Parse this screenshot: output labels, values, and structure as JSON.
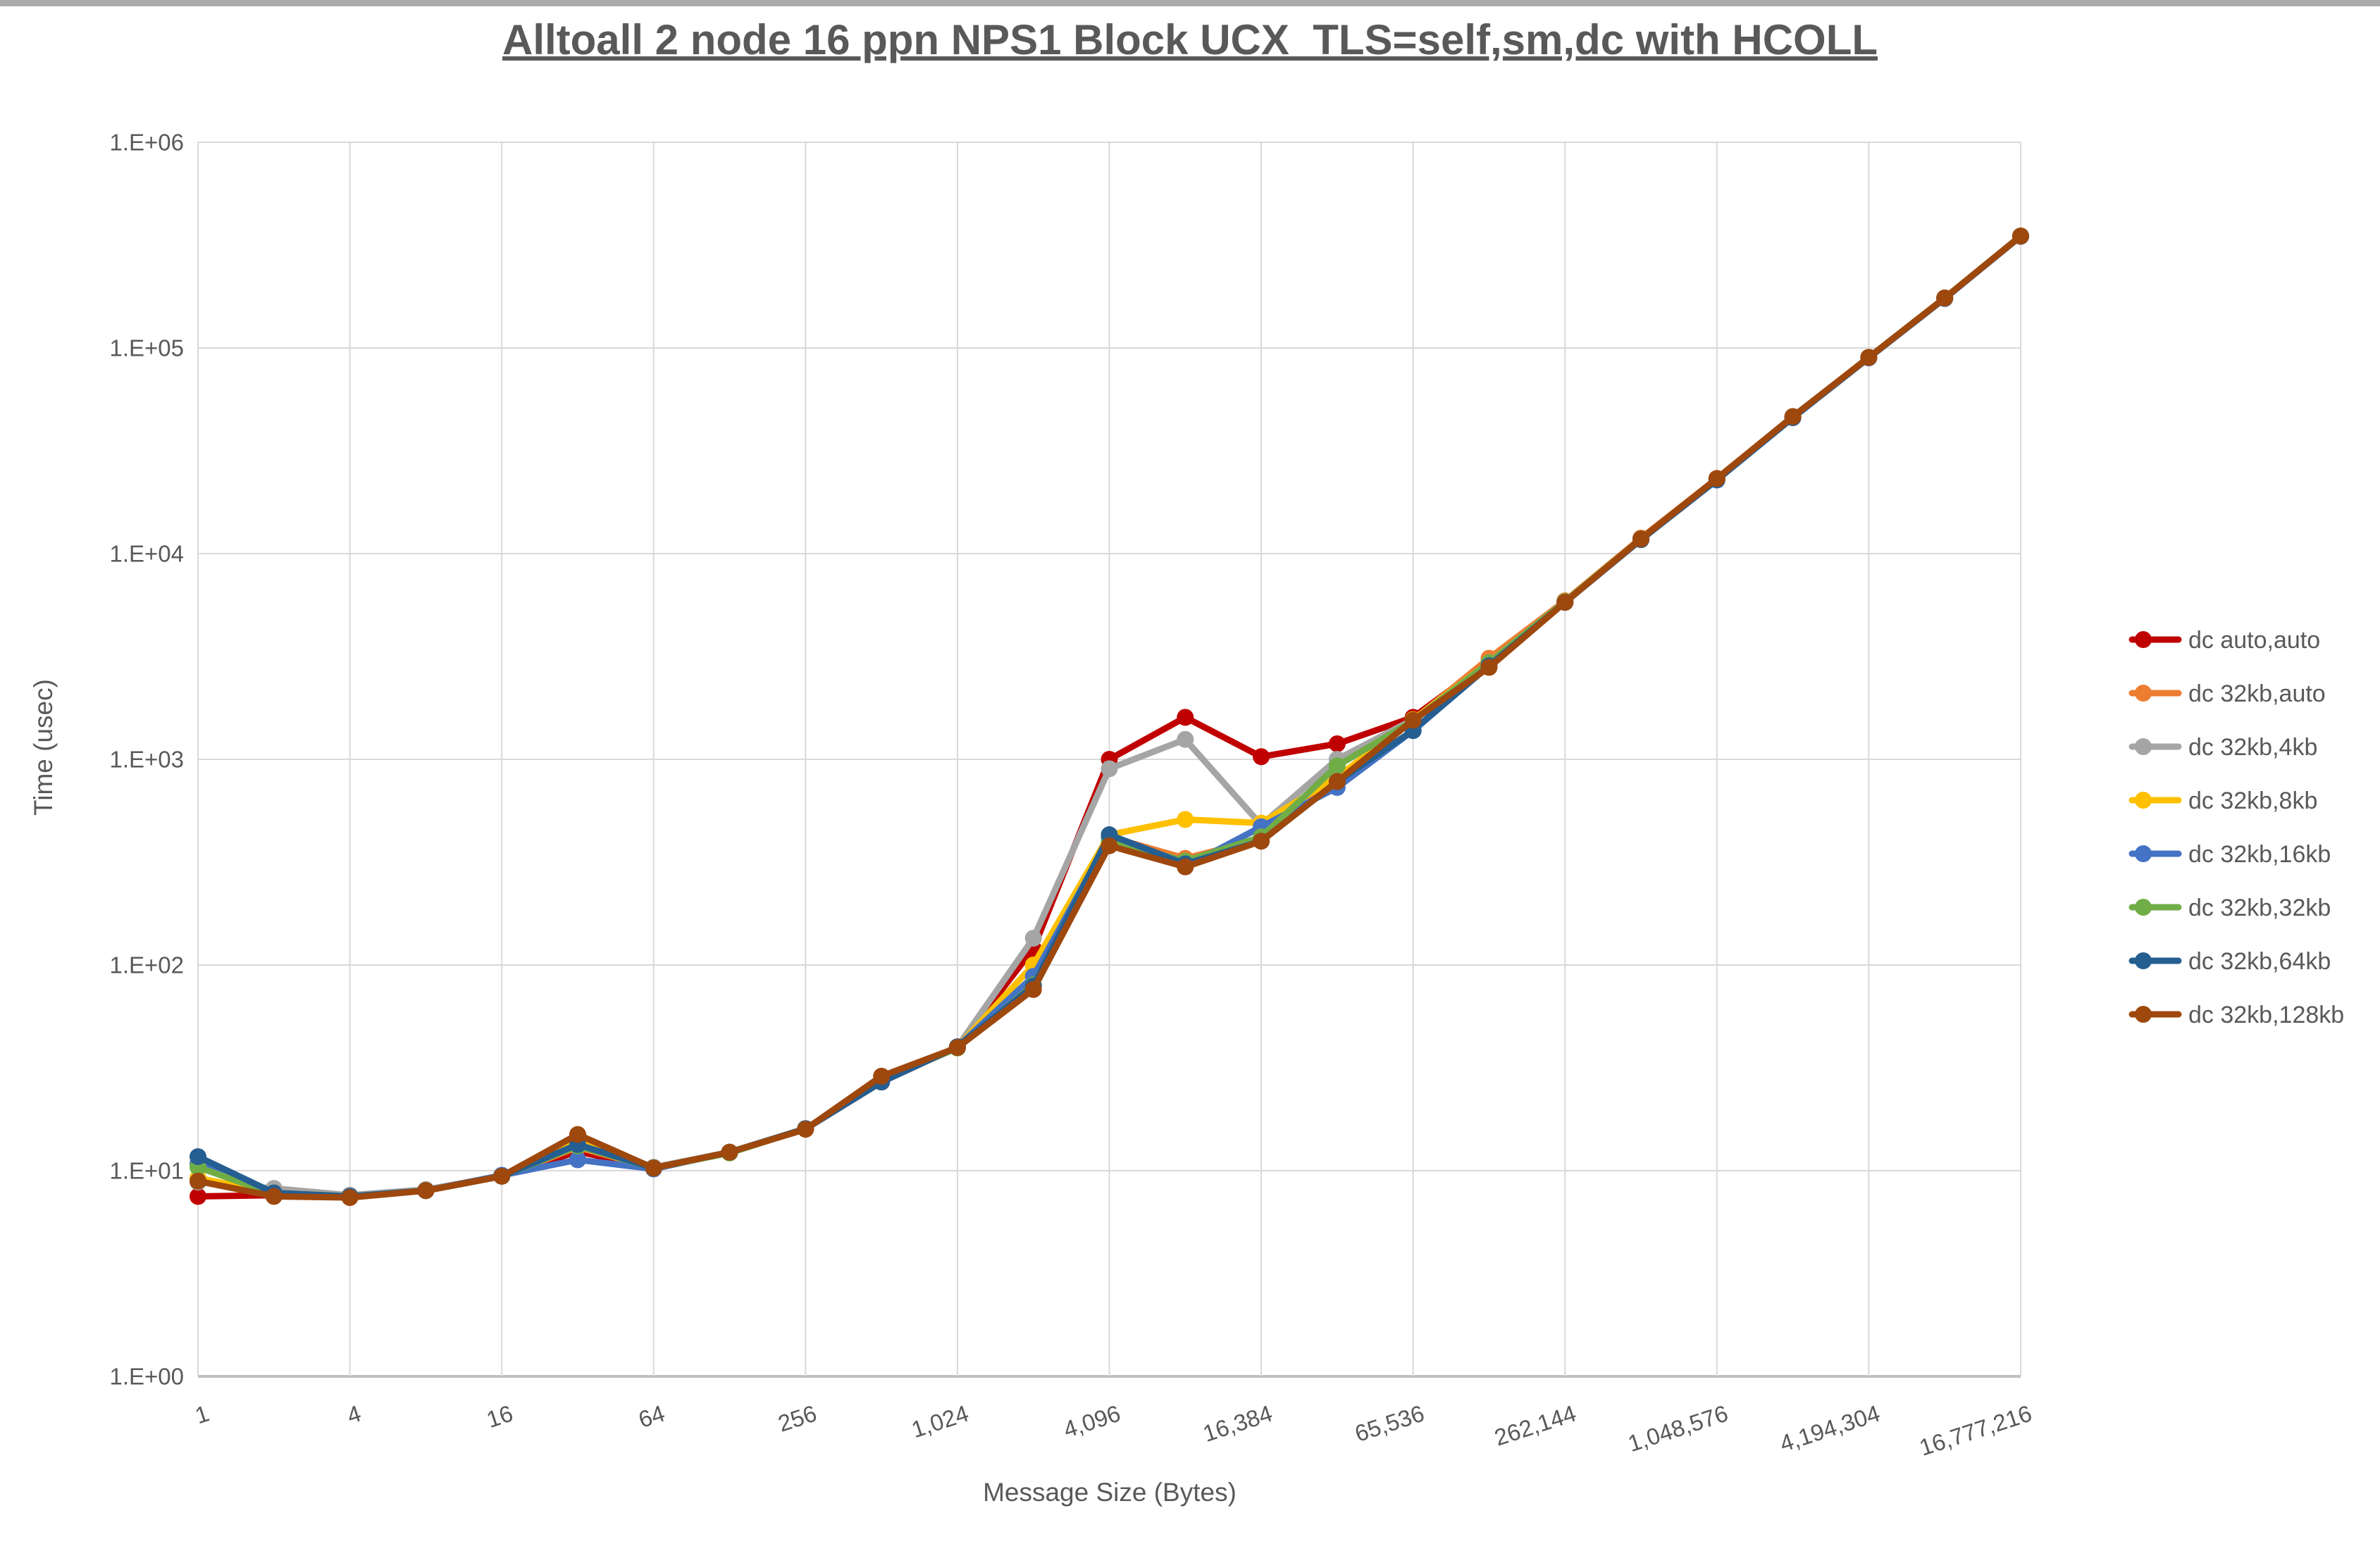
{
  "title": "Alltoall 2 node 16 ppn NPS1 Block UCX_TLS=self,sm,dc with HCOLL",
  "chart_data": {
    "type": "line",
    "title": "Alltoall 2 node 16 ppn NPS1 Block UCX_TLS=self,sm,dc with HCOLL",
    "xlabel": "Message Size (Bytes)",
    "ylabel": "Time (usec)",
    "x_scale": "log",
    "y_scale": "log",
    "ylim": [
      1,
      1000000
    ],
    "grid": true,
    "legend_position": "right",
    "gridline_color": "#d9d9d9",
    "axis_line_color": "#bfbfbf",
    "label_color": "#595959",
    "x": [
      1,
      2,
      4,
      8,
      16,
      32,
      64,
      128,
      256,
      512,
      1024,
      2048,
      4096,
      8192,
      16384,
      32768,
      65536,
      131072,
      262144,
      524288,
      1048576,
      2097152,
      4194304,
      8388608,
      16777216
    ],
    "x_tick_labels": [
      "1",
      "4",
      "16",
      "64",
      "256",
      "1,024",
      "4,096",
      "16,384",
      "65,536",
      "262,144",
      "1,048,576",
      "4,194,304",
      "16,777,216"
    ],
    "y_tick_labels": [
      "1.E+00",
      "1.E+01",
      "1.E+02",
      "1.E+03",
      "1.E+04",
      "1.E+05",
      "1.E+06"
    ],
    "series": [
      {
        "name": "dc auto,auto",
        "color": "#C00000",
        "values": [
          7.5,
          7.6,
          7.5,
          8.0,
          9.4,
          12.4,
          10.3,
          12.3,
          16,
          27,
          40,
          120,
          1000,
          1600,
          1030,
          1190,
          1600,
          3000,
          5800,
          11800,
          23000,
          46000,
          90000,
          175000,
          350000
        ]
      },
      {
        "name": "dc 32kb,auto",
        "color": "#ED7D31",
        "values": [
          9.0,
          7.7,
          7.5,
          8.0,
          9.4,
          13.0,
          10.3,
          12.3,
          16,
          27,
          40,
          78,
          420,
          330,
          410,
          800,
          1550,
          3100,
          5900,
          11900,
          23200,
          46200,
          90000,
          175000,
          350000
        ]
      },
      {
        "name": "dc 32kb,4kb",
        "color": "#A5A5A5",
        "values": [
          8.8,
          8.2,
          7.6,
          8.1,
          9.4,
          13.5,
          10.4,
          12.3,
          16,
          27,
          40,
          135,
          900,
          1250,
          480,
          1000,
          1560,
          2950,
          5850,
          11800,
          23000,
          46000,
          90000,
          175000,
          350000
        ]
      },
      {
        "name": "dc 32kb,8kb",
        "color": "#FFC000",
        "values": [
          9.2,
          7.8,
          7.5,
          8.0,
          9.4,
          13.8,
          10.3,
          12.3,
          16,
          27,
          40,
          100,
          430,
          510,
          490,
          820,
          1560,
          2950,
          5850,
          11800,
          23000,
          46000,
          90000,
          175000,
          350000
        ]
      },
      {
        "name": "dc 32kb,16kb",
        "color": "#4472C4",
        "values": [
          10.8,
          7.7,
          7.5,
          8.0,
          9.5,
          11.3,
          10.2,
          12.3,
          16,
          27,
          40,
          88,
          415,
          300,
          470,
          730,
          1380,
          2900,
          5800,
          11700,
          22800,
          45800,
          89500,
          174000,
          349000
        ]
      },
      {
        "name": "dc 32kb,32kb",
        "color": "#70AD47",
        "values": [
          10.4,
          7.7,
          7.5,
          8.0,
          9.4,
          13.2,
          10.3,
          12.2,
          16,
          27.5,
          39.5,
          80,
          400,
          320,
          420,
          930,
          1540,
          2950,
          5850,
          11800,
          23000,
          46000,
          90000,
          175000,
          350000
        ]
      },
      {
        "name": "dc 32kb,64kb",
        "color": "#255E91",
        "values": [
          11.7,
          7.8,
          7.5,
          8.0,
          9.4,
          13.4,
          10.3,
          12.3,
          16,
          27,
          40,
          79,
          430,
          310,
          400,
          780,
          1380,
          2850,
          5800,
          11700,
          22900,
          45900,
          89800,
          174500,
          349500
        ]
      },
      {
        "name": "dc 32kb,128kb",
        "color": "#9E480E",
        "values": [
          8.9,
          7.5,
          7.4,
          8.0,
          9.4,
          15.0,
          10.3,
          12.3,
          15.9,
          28.8,
          39.7,
          76,
          380,
          300,
          400,
          780,
          1550,
          2800,
          5800,
          11800,
          23200,
          46400,
          90000,
          175000,
          350000
        ]
      }
    ]
  }
}
